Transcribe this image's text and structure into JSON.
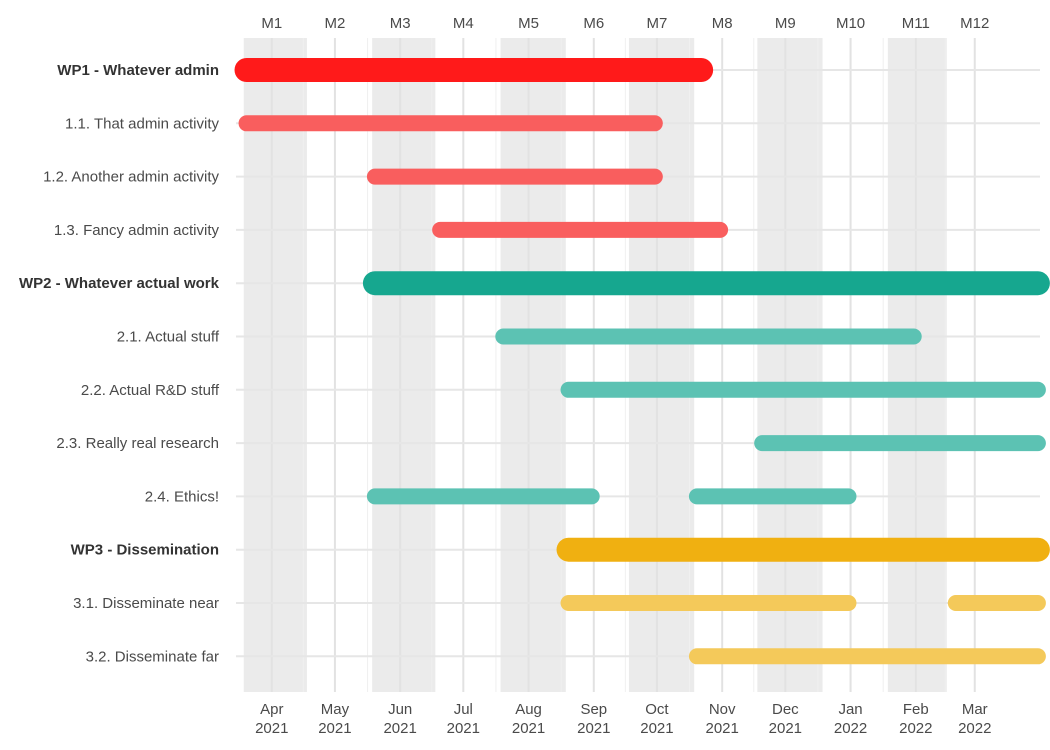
{
  "chart_data": {
    "type": "gantt",
    "title": "",
    "x_start": "2021-03-15",
    "x_end": "2022-04-01",
    "month_labels": [
      "M1",
      "M2",
      "M3",
      "M4",
      "M5",
      "M6",
      "M7",
      "M8",
      "M9",
      "M10",
      "M11",
      "M12"
    ],
    "date_ticks": [
      {
        "date": "2021-04-01",
        "label": [
          "Apr",
          "2021"
        ]
      },
      {
        "date": "2021-05-01",
        "label": [
          "May",
          "2021"
        ]
      },
      {
        "date": "2021-06-01",
        "label": [
          "Jun",
          "2021"
        ]
      },
      {
        "date": "2021-07-01",
        "label": [
          "Jul",
          "2021"
        ]
      },
      {
        "date": "2021-08-01",
        "label": [
          "Aug",
          "2021"
        ]
      },
      {
        "date": "2021-09-01",
        "label": [
          "Sep",
          "2021"
        ]
      },
      {
        "date": "2021-10-01",
        "label": [
          "Oct",
          "2021"
        ]
      },
      {
        "date": "2021-11-01",
        "label": [
          "Nov",
          "2021"
        ]
      },
      {
        "date": "2021-12-01",
        "label": [
          "Dec",
          "2021"
        ]
      },
      {
        "date": "2022-01-01",
        "label": [
          "Jan",
          "2022"
        ]
      },
      {
        "date": "2022-02-01",
        "label": [
          "Feb",
          "2022"
        ]
      },
      {
        "date": "2022-03-01",
        "label": [
          "Mar",
          "2022"
        ]
      }
    ],
    "month_bands_shaded": [
      1,
      3,
      5,
      7,
      9,
      11
    ],
    "rows": [
      {
        "label": "WP1 - Whatever admin",
        "wp": true,
        "color": "#ff1a1a",
        "segments": [
          [
            "2021-03-20",
            "2021-10-22"
          ]
        ]
      },
      {
        "label": "1.1. That admin activity",
        "wp": false,
        "color": "#f95e5e",
        "segments": [
          [
            "2021-03-20",
            "2021-09-30"
          ]
        ]
      },
      {
        "label": "1.2. Another admin activity",
        "wp": false,
        "color": "#f95e5e",
        "segments": [
          [
            "2021-05-20",
            "2021-09-30"
          ]
        ]
      },
      {
        "label": "1.3. Fancy admin activity",
        "wp": false,
        "color": "#f95e5e",
        "segments": [
          [
            "2021-06-20",
            "2021-10-31"
          ]
        ]
      },
      {
        "label": "WP2 - Whatever actual work",
        "wp": true,
        "color": "#16a78f",
        "segments": [
          [
            "2021-05-20",
            "2022-03-31"
          ]
        ]
      },
      {
        "label": "2.1. Actual stuff",
        "wp": false,
        "color": "#5cc2b3",
        "segments": [
          [
            "2021-07-20",
            "2022-01-31"
          ]
        ]
      },
      {
        "label": "2.2. Actual R&D stuff",
        "wp": false,
        "color": "#5cc2b3",
        "segments": [
          [
            "2021-08-20",
            "2022-03-31"
          ]
        ]
      },
      {
        "label": "2.3. Really real research",
        "wp": false,
        "color": "#5cc2b3",
        "segments": [
          [
            "2021-11-20",
            "2022-03-31"
          ]
        ]
      },
      {
        "label": "2.4. Ethics!",
        "wp": false,
        "color": "#5cc2b3",
        "segments": [
          [
            "2021-05-20",
            "2021-08-31"
          ],
          [
            "2021-10-20",
            "2021-12-31"
          ]
        ]
      },
      {
        "label": "WP3 - Dissemination",
        "wp": true,
        "color": "#f0b011",
        "segments": [
          [
            "2021-08-20",
            "2022-03-31"
          ]
        ]
      },
      {
        "label": "3.1. Disseminate near",
        "wp": false,
        "color": "#f4c95a",
        "segments": [
          [
            "2021-08-20",
            "2021-12-31"
          ],
          [
            "2022-02-20",
            "2022-03-31"
          ]
        ]
      },
      {
        "label": "3.2. Disseminate far",
        "wp": false,
        "color": "#f4c95a",
        "segments": [
          [
            "2021-10-20",
            "2022-03-31"
          ]
        ]
      }
    ]
  }
}
